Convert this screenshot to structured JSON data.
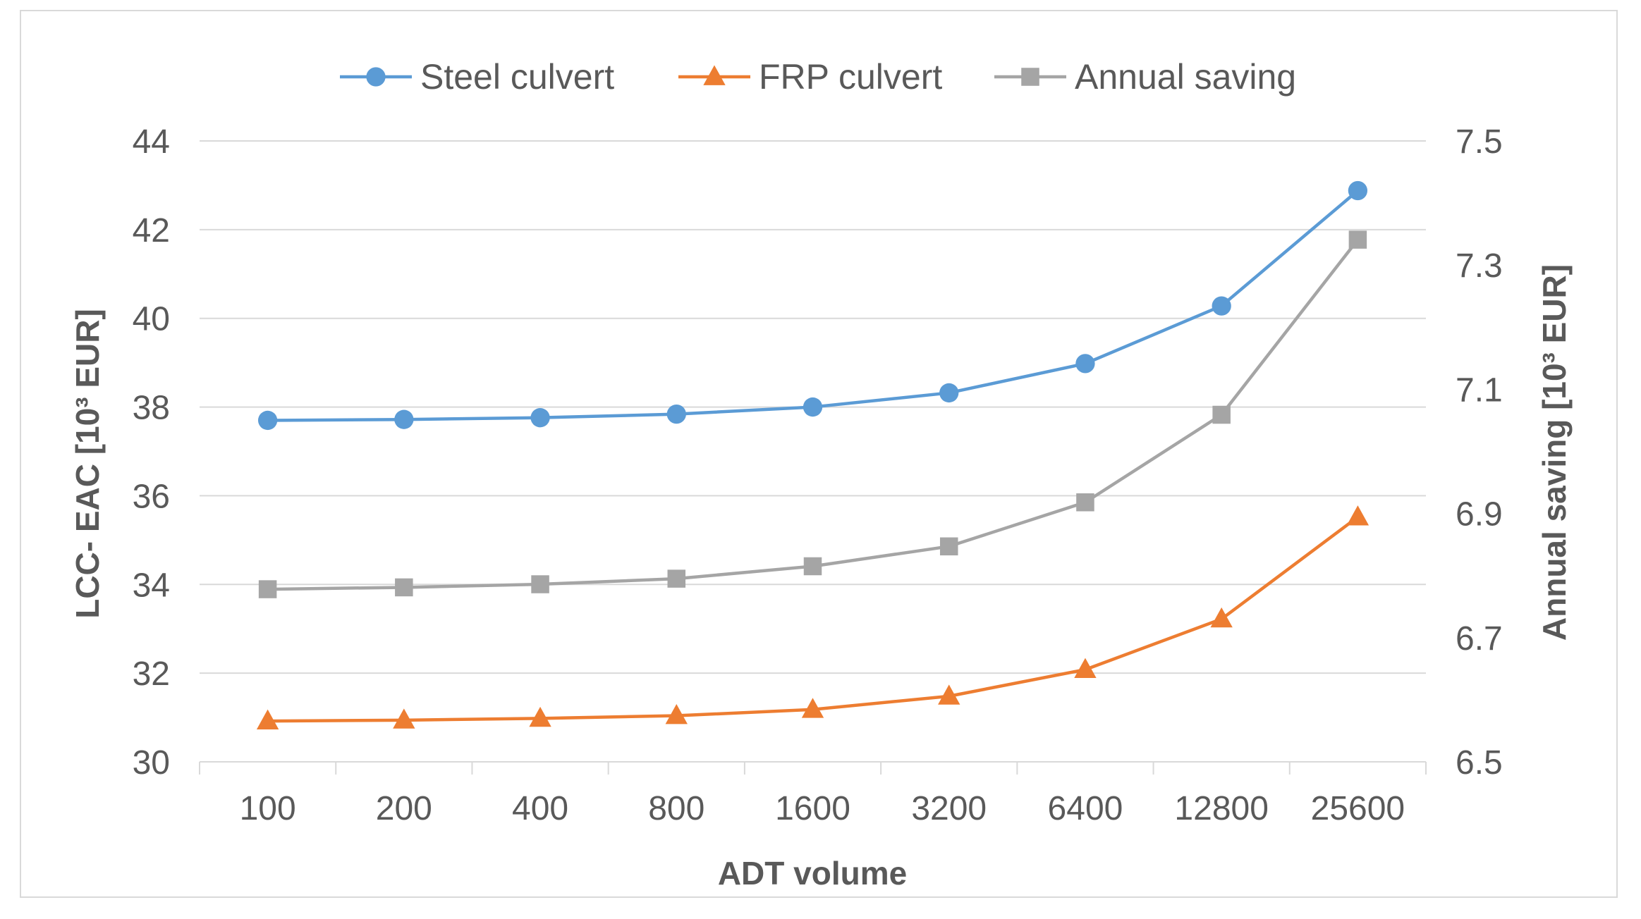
{
  "chart_data": {
    "type": "line",
    "categories": [
      "100",
      "200",
      "400",
      "800",
      "1600",
      "3200",
      "6400",
      "12800",
      "25600"
    ],
    "xlabel": "ADT volume",
    "ylabel": "LCC- EAC [10³ EUR]",
    "y2label": "Annual saving  [10³ EUR]",
    "ylim": [
      30,
      44
    ],
    "yticks": [
      "30",
      "32",
      "34",
      "36",
      "38",
      "40",
      "42",
      "44"
    ],
    "y2lim": [
      6.5,
      7.5
    ],
    "y2ticks": [
      "6.5",
      "6.7",
      "6.9",
      "7.1",
      "7.3",
      "7.5"
    ],
    "grid": true,
    "legend_position": "top",
    "series": [
      {
        "name": "Steel culvert",
        "axis": "left",
        "marker": "circle",
        "color": "#5b9bd5",
        "values": [
          37.7,
          37.72,
          37.76,
          37.84,
          38.0,
          38.32,
          38.98,
          40.28,
          42.88
        ]
      },
      {
        "name": "FRP culvert",
        "axis": "left",
        "marker": "triangle",
        "color": "#ed7d31",
        "values": [
          30.92,
          30.94,
          30.98,
          31.04,
          31.18,
          31.48,
          32.08,
          33.22,
          35.52
        ]
      },
      {
        "name": "Annual saving",
        "axis": "right",
        "marker": "square",
        "color": "#a5a5a5",
        "values": [
          6.778,
          6.781,
          6.786,
          6.795,
          6.815,
          6.847,
          6.918,
          7.059,
          7.341
        ]
      }
    ]
  }
}
